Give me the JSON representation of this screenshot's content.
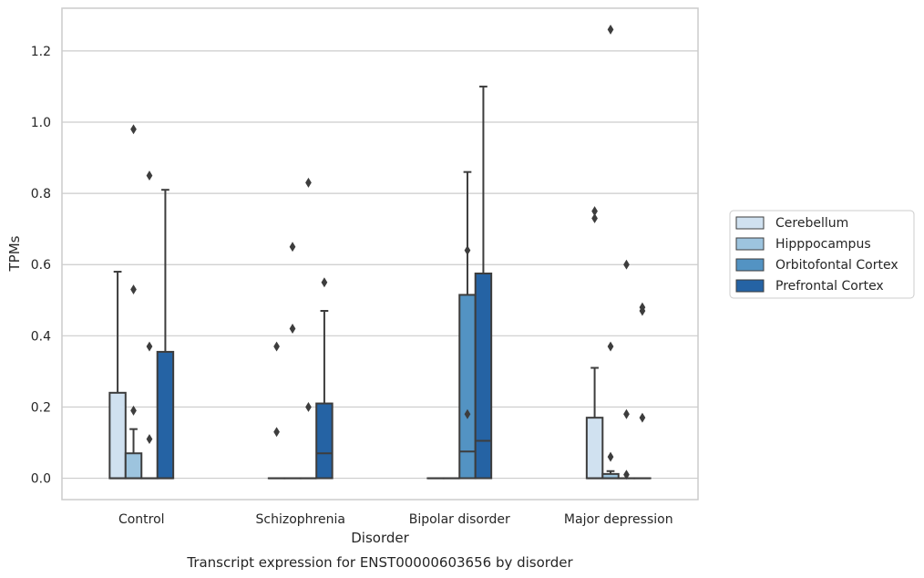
{
  "chart_data": {
    "type": "boxplot",
    "title": "",
    "caption": "Transcript expression for ENST00000603656 by disorder",
    "xlabel": "Disorder",
    "ylabel": "TPMs",
    "ylim": [
      -0.06,
      1.32
    ],
    "yticks": [
      "0.0",
      "0.2",
      "0.4",
      "0.6",
      "0.8",
      "1.0",
      "1.2"
    ],
    "grid": "horizontal",
    "legend_position": "right",
    "categories": [
      "Control",
      "Schizophrenia",
      "Bipolar disorder",
      "Major depression"
    ],
    "colors": {
      "Cerebellum": "#d0e1f0",
      "Hipppocampus": "#9dc4de",
      "Orbitofontal Cortex": "#5393c3",
      "Prefrontal Cortex": "#2563a4"
    },
    "series": [
      {
        "name": "Cerebellum",
        "boxes": [
          {
            "q1": 0.0,
            "median": 0.0,
            "q3": 0.24,
            "whisker_low": 0.0,
            "whisker_high": 0.58,
            "outliers": []
          },
          {
            "q1": 0.0,
            "median": 0.0,
            "q3": 0.0,
            "whisker_low": 0.0,
            "whisker_high": 0.0,
            "outliers": [
              0.37,
              0.13
            ]
          },
          {
            "q1": 0.0,
            "median": 0.0,
            "q3": 0.0,
            "whisker_low": 0.0,
            "whisker_high": 0.0,
            "outliers": []
          },
          {
            "q1": 0.0,
            "median": 0.0,
            "q3": 0.17,
            "whisker_low": 0.0,
            "whisker_high": 0.31,
            "outliers": [
              0.75,
              0.73
            ]
          }
        ]
      },
      {
        "name": "Hipppocampus",
        "boxes": [
          {
            "q1": 0.0,
            "median": 0.0,
            "q3": 0.07,
            "whisker_low": 0.0,
            "whisker_high": 0.138,
            "outliers": [
              0.98,
              0.53,
              0.19
            ]
          },
          {
            "q1": 0.0,
            "median": 0.0,
            "q3": 0.0,
            "whisker_low": 0.0,
            "whisker_high": 0.0,
            "outliers": [
              0.65,
              0.42
            ]
          },
          {
            "q1": 0.0,
            "median": 0.0,
            "q3": 0.0,
            "whisker_low": 0.0,
            "whisker_high": 0.0,
            "outliers": []
          },
          {
            "q1": 0.0,
            "median": 0.0,
            "q3": 0.012,
            "whisker_low": 0.0,
            "whisker_high": 0.02,
            "outliers": [
              1.26,
              0.37,
              0.06
            ]
          }
        ]
      },
      {
        "name": "Orbitofontal Cortex",
        "boxes": [
          {
            "q1": 0.0,
            "median": 0.0,
            "q3": 0.0,
            "whisker_low": 0.0,
            "whisker_high": 0.0,
            "outliers": [
              0.85,
              0.37,
              0.11
            ]
          },
          {
            "q1": 0.0,
            "median": 0.0,
            "q3": 0.0,
            "whisker_low": 0.0,
            "whisker_high": 0.0,
            "outliers": [
              0.83,
              0.2
            ]
          },
          {
            "q1": 0.0,
            "median": 0.075,
            "q3": 0.515,
            "whisker_low": 0.0,
            "whisker_high": 0.86,
            "outliers": [
              0.64,
              0.18
            ]
          },
          {
            "q1": 0.0,
            "median": 0.0,
            "q3": 0.0,
            "whisker_low": 0.0,
            "whisker_high": 0.0,
            "outliers": [
              0.6,
              0.18,
              0.01
            ]
          }
        ]
      },
      {
        "name": "Prefrontal Cortex",
        "boxes": [
          {
            "q1": 0.0,
            "median": 0.0,
            "q3": 0.355,
            "whisker_low": 0.0,
            "whisker_high": 0.81,
            "outliers": []
          },
          {
            "q1": 0.0,
            "median": 0.07,
            "q3": 0.21,
            "whisker_low": 0.0,
            "whisker_high": 0.47,
            "outliers": [
              0.55
            ]
          },
          {
            "q1": 0.0,
            "median": 0.105,
            "q3": 0.575,
            "whisker_low": 0.0,
            "whisker_high": 1.1,
            "outliers": []
          },
          {
            "q1": 0.0,
            "median": 0.0,
            "q3": 0.0,
            "whisker_low": 0.0,
            "whisker_high": 0.0,
            "outliers": [
              0.48,
              0.47,
              0.17
            ]
          }
        ]
      }
    ]
  }
}
